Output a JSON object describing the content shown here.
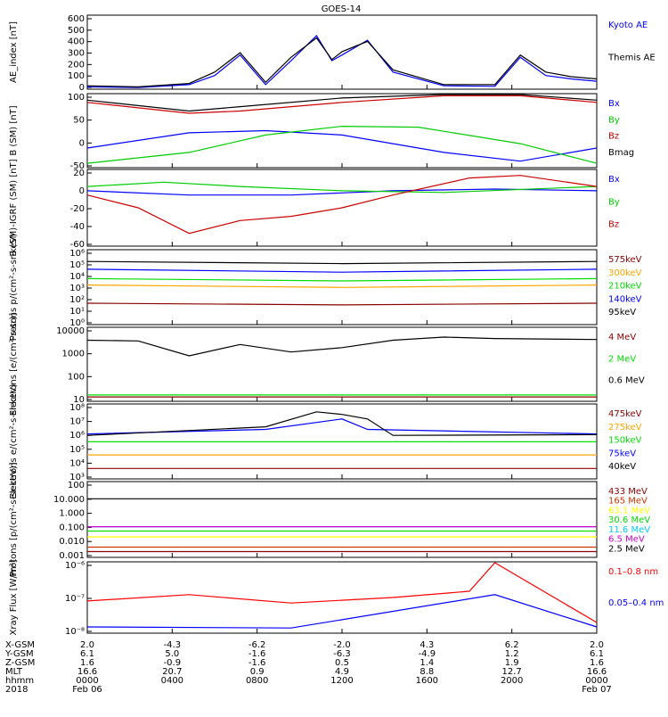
{
  "title": "GOES-14",
  "chart_data": [
    {
      "type": "line",
      "ylabel": "AE_index [nT]",
      "ylim": [
        0,
        650
      ],
      "yticks": [
        "600",
        "500",
        "400",
        "300",
        "200",
        "100",
        "0"
      ],
      "series": [
        {
          "name": "Kyoto AE",
          "color": "#0000ff",
          "x": [
            0,
            0.1,
            0.2,
            0.25,
            0.3,
            0.35,
            0.4,
            0.45,
            0.48,
            0.5,
            0.55,
            0.6,
            0.7,
            0.8,
            0.85,
            0.9,
            0.95,
            1
          ],
          "values": [
            20,
            15,
            40,
            120,
            300,
            40,
            250,
            470,
            250,
            300,
            430,
            150,
            30,
            25,
            280,
            120,
            90,
            70
          ]
        },
        {
          "name": "Themis AE",
          "color": "#000000",
          "x": [
            0,
            0.1,
            0.2,
            0.25,
            0.3,
            0.35,
            0.4,
            0.45,
            0.48,
            0.5,
            0.55,
            0.6,
            0.7,
            0.8,
            0.85,
            0.9,
            0.95,
            1
          ],
          "values": [
            30,
            20,
            50,
            150,
            320,
            60,
            280,
            450,
            260,
            330,
            420,
            170,
            40,
            40,
            300,
            150,
            110,
            90
          ]
        }
      ]
    },
    {
      "type": "line",
      "ylabel": "B (SM) [nT]",
      "ylim": [
        -55,
        115
      ],
      "yticks": [
        "100",
        "50",
        "0",
        "-50"
      ],
      "series": [
        {
          "name": "Bx",
          "color": "#0000ff",
          "x": [
            0,
            0.2,
            0.35,
            0.5,
            0.7,
            0.85,
            1
          ],
          "values": [
            -10,
            25,
            30,
            20,
            -20,
            -40,
            -10
          ]
        },
        {
          "name": "By",
          "color": "#00cc00",
          "x": [
            0,
            0.2,
            0.35,
            0.5,
            0.65,
            0.85,
            1
          ],
          "values": [
            -45,
            -20,
            20,
            40,
            38,
            0,
            -45
          ]
        },
        {
          "name": "Bz",
          "color": "#cc0000",
          "x": [
            0,
            0.2,
            0.3,
            0.5,
            0.7,
            0.85,
            1
          ],
          "values": [
            95,
            70,
            75,
            95,
            110,
            110,
            95
          ]
        },
        {
          "name": "Bmag",
          "color": "#000000",
          "x": [
            0,
            0.2,
            0.3,
            0.5,
            0.7,
            0.85,
            1
          ],
          "values": [
            100,
            75,
            85,
            105,
            115,
            118,
            100
          ]
        }
      ]
    },
    {
      "type": "line",
      "ylabel": "B (SM)-IGRF (SM) [nT]",
      "ylim": [
        -65,
        25
      ],
      "yticks": [
        "20",
        "0",
        "-20",
        "-40",
        "-60"
      ],
      "series": [
        {
          "name": "Bx",
          "color": "#0000ff",
          "x": [
            0,
            0.2,
            0.4,
            0.6,
            0.8,
            1
          ],
          "values": [
            0,
            -5,
            -5,
            0,
            2,
            0
          ]
        },
        {
          "name": "By",
          "color": "#00cc00",
          "x": [
            0,
            0.15,
            0.3,
            0.5,
            0.7,
            1
          ],
          "values": [
            5,
            10,
            5,
            0,
            -2,
            5
          ]
        },
        {
          "name": "Bz",
          "color": "#cc0000",
          "x": [
            0,
            0.1,
            0.2,
            0.3,
            0.4,
            0.5,
            0.6,
            0.75,
            0.85,
            1
          ],
          "values": [
            -5,
            -20,
            -50,
            -35,
            -30,
            -20,
            -5,
            15,
            18,
            5
          ]
        }
      ]
    },
    {
      "type": "line",
      "ylabel": "Protons p/(cm²-s-sr-keV)",
      "ylim": [
        0.1,
        1000000
      ],
      "log": true,
      "yticks": [
        "10⁶",
        "10⁵",
        "10⁴",
        "10³",
        "10²",
        "10¹",
        "10⁰"
      ],
      "series": [
        {
          "name": "575keV",
          "color": "#8b0000",
          "x": [
            0,
            0.5,
            1
          ],
          "values": [
            10,
            7,
            10
          ]
        },
        {
          "name": "300keV",
          "color": "#ffa500",
          "x": [
            0,
            0.5,
            1
          ],
          "values": [
            500,
            300,
            500
          ]
        },
        {
          "name": "210keV",
          "color": "#00dd00",
          "x": [
            0,
            0.5,
            1
          ],
          "values": [
            2000,
            1200,
            2000
          ]
        },
        {
          "name": "140keV",
          "color": "#0000ff",
          "x": [
            0,
            0.5,
            1
          ],
          "values": [
            15000,
            8000,
            15000
          ]
        },
        {
          "name": "95keV",
          "color": "#000000",
          "x": [
            0,
            0.5,
            1
          ],
          "values": [
            80000,
            50000,
            80000
          ]
        }
      ]
    },
    {
      "type": "line",
      "ylabel": "Electrons [e/(cm²-s-sr)]",
      "ylim": [
        10,
        10000
      ],
      "log": true,
      "yticks": [
        "10000",
        "1000",
        "100",
        "10"
      ],
      "series": [
        {
          "name": "4 MeV",
          "color": "#8b0000",
          "x": [
            0,
            1
          ],
          "values": [
            15,
            15
          ]
        },
        {
          "name": "2 MeV",
          "color": "#00dd00",
          "x": [
            0,
            1
          ],
          "values": [
            18,
            18
          ]
        },
        {
          "name": "0.6 MeV",
          "color": "#000000",
          "x": [
            0,
            0.1,
            0.2,
            0.3,
            0.4,
            0.5,
            0.6,
            0.7,
            0.8,
            1
          ],
          "values": [
            3000,
            2800,
            700,
            2000,
            1000,
            1500,
            3000,
            4000,
            3500,
            3200
          ]
        }
      ]
    },
    {
      "type": "line",
      "ylabel": "Electrons e/(cm²-s-sr-keV)",
      "ylim": [
        1000,
        100000000
      ],
      "log": true,
      "yticks": [
        "10⁸",
        "10⁷",
        "10⁶",
        "10⁵",
        "10⁴",
        "10³"
      ],
      "series": [
        {
          "name": "475keV",
          "color": "#8b0000",
          "x": [
            0,
            1
          ],
          "values": [
            5000,
            5000
          ]
        },
        {
          "name": "275keV",
          "color": "#ffa500",
          "x": [
            0,
            1
          ],
          "values": [
            40000,
            40000
          ]
        },
        {
          "name": "150keV",
          "color": "#00dd00",
          "x": [
            0,
            1
          ],
          "values": [
            300000,
            300000
          ]
        },
        {
          "name": "75keV",
          "color": "#0000ff",
          "x": [
            0,
            0.35,
            0.5,
            0.55,
            1
          ],
          "values": [
            1000000,
            2000000,
            10000000,
            2000000,
            1000000
          ]
        },
        {
          "name": "40keV",
          "color": "#000000",
          "x": [
            0,
            0.35,
            0.45,
            0.5,
            0.55,
            0.6,
            1
          ],
          "values": [
            800000,
            3000000,
            30000000,
            20000000,
            10000000,
            800000,
            900000
          ]
        }
      ]
    },
    {
      "type": "line",
      "ylabel": "Protons [p/(cm²-s-sr-keV)]",
      "ylim": [
        0.0008,
        120
      ],
      "log": true,
      "yticks": [
        "100",
        "10.000",
        "1.000",
        "0.100",
        "0.010",
        "0.001"
      ],
      "series": [
        {
          "name": "433 MeV",
          "color": "#8b0000",
          "x": [
            0,
            1
          ],
          "values": [
            0.002,
            0.002
          ]
        },
        {
          "name": "165 MeV",
          "color": "#cc3300",
          "x": [
            0,
            1
          ],
          "values": [
            0.004,
            0.004
          ]
        },
        {
          "name": "63.1 MeV",
          "color": "#ffff00",
          "x": [
            0,
            1
          ],
          "values": [
            0.02,
            0.02
          ]
        },
        {
          "name": "30.6 MeV",
          "color": "#00dd00",
          "x": [
            0,
            1
          ],
          "values": [
            0.05,
            0.05
          ]
        },
        {
          "name": "11.6 MeV",
          "color": "#00ccff",
          "x": [
            0,
            1
          ],
          "values": [
            0.1,
            0.1
          ]
        },
        {
          "name": "6.5 MeV",
          "color": "#cc00cc",
          "x": [
            0,
            1
          ],
          "values": [
            0.1,
            0.1
          ]
        },
        {
          "name": "2.5 MeV",
          "color": "#000000",
          "x": [
            0,
            1
          ],
          "values": [
            8,
            8
          ]
        }
      ]
    },
    {
      "type": "line",
      "ylabel": "Xray Flux [W/m²]",
      "ylim": [
        1e-08,
        1e-06
      ],
      "log": true,
      "yticks": [
        "10⁻⁶",
        "10⁻⁷",
        "10⁻⁸"
      ],
      "series": [
        {
          "name": "0.1–0.8 nm",
          "color": "#ff0000",
          "x": [
            0,
            0.2,
            0.4,
            0.6,
            0.75,
            0.8,
            1
          ],
          "values": [
            8e-08,
            1.2e-07,
            7e-08,
            1e-07,
            1.5e-07,
            1.2e-06,
            2e-08
          ]
        },
        {
          "name": "0.05–0.4 nm",
          "color": "#0000ff",
          "x": [
            0,
            0.4,
            0.8,
            1
          ],
          "values": [
            1.5e-08,
            1.4e-08,
            1.2e-07,
            1.5e-08
          ]
        }
      ]
    }
  ],
  "xaxis": {
    "rows": [
      {
        "label": "X-GSM",
        "values": [
          "2.0",
          "-4.3",
          "-6.2",
          "-2.0",
          "4.3",
          "6.2",
          "2.0"
        ]
      },
      {
        "label": "Y-GSM",
        "values": [
          "6.1",
          "5.0",
          "-1.6",
          "-6.3",
          "-4.9",
          "1.2",
          "6.1"
        ]
      },
      {
        "label": "Z-GSM",
        "values": [
          "1.6",
          "-0.9",
          "-1.6",
          "0.5",
          "1.4",
          "1.9",
          "1.6"
        ]
      },
      {
        "label": "MLT",
        "values": [
          "16.6",
          "20.7",
          "0.9",
          "4.9",
          "8.8",
          "12.7",
          "16.6"
        ]
      },
      {
        "label": "hhmm",
        "values": [
          "0000",
          "0400",
          "0800",
          "1200",
          "1600",
          "2000",
          "0000"
        ]
      },
      {
        "label": "2018",
        "values": [
          "Feb 06",
          "",
          "",
          "",
          "",
          "",
          "Feb 07"
        ]
      }
    ]
  }
}
